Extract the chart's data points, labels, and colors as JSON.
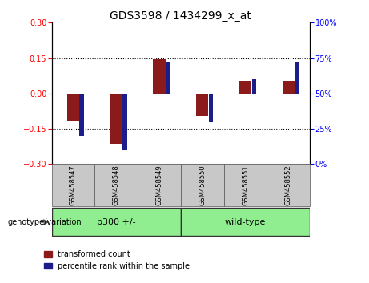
{
  "title": "GDS3598 / 1434299_x_at",
  "samples": [
    "GSM458547",
    "GSM458548",
    "GSM458549",
    "GSM458550",
    "GSM458551",
    "GSM458552"
  ],
  "red_values": [
    -0.115,
    -0.215,
    0.145,
    -0.095,
    0.055,
    0.055
  ],
  "blue_values_pct": [
    20,
    10,
    72,
    30,
    60,
    72
  ],
  "ylim_left": [
    -0.3,
    0.3
  ],
  "ylim_right": [
    0,
    100
  ],
  "yticks_left": [
    -0.3,
    -0.15,
    0,
    0.15,
    0.3
  ],
  "yticks_right": [
    0,
    25,
    50,
    75,
    100
  ],
  "dotted_lines": [
    -0.15,
    0.15
  ],
  "group1_label": "p300 +/-",
  "group2_label": "wild-type",
  "group1_indices": [
    0,
    1,
    2
  ],
  "group2_indices": [
    3,
    4,
    5
  ],
  "xlabel_label": "genotype/variation",
  "legend_red": "transformed count",
  "legend_blue": "percentile rank within the sample",
  "bar_color_red": "#8B1A1A",
  "bar_color_blue": "#1C1C8B",
  "group1_color": "#90EE90",
  "group2_color": "#90EE90",
  "sample_box_color": "#C8C8C8",
  "red_bar_width": 0.28,
  "blue_bar_width": 0.1,
  "blue_bar_height": 0.018,
  "tick_label_fontsize": 7,
  "title_fontsize": 10,
  "group_label_fontsize": 8,
  "legend_fontsize": 7,
  "sample_fontsize": 6
}
